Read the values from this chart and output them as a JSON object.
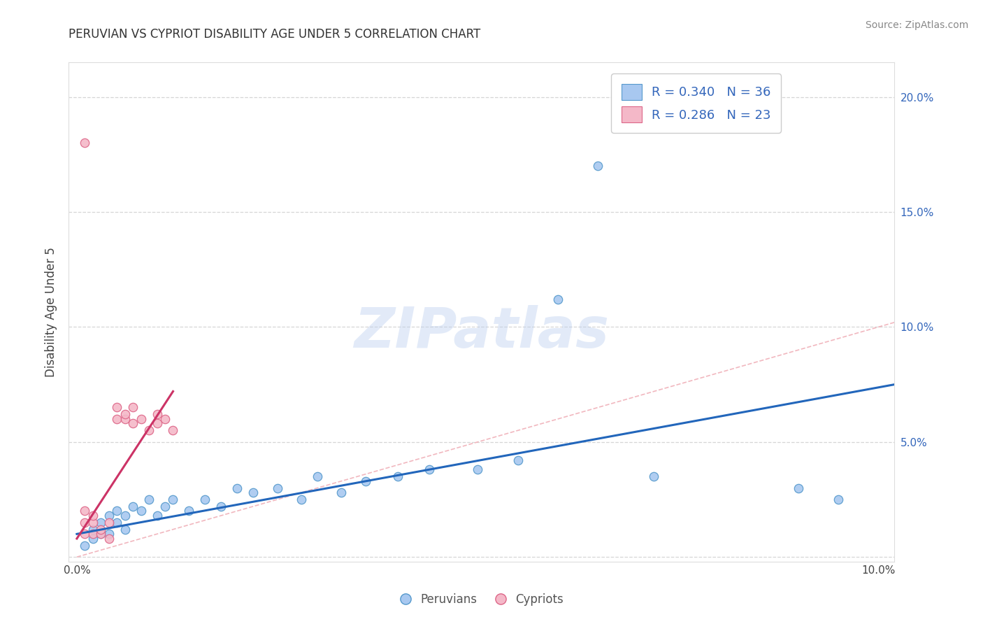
{
  "title": "PERUVIAN VS CYPRIOT DISABILITY AGE UNDER 5 CORRELATION CHART",
  "source_text": "Source: ZipAtlas.com",
  "xlabel": "",
  "ylabel": "Disability Age Under 5",
  "xlim": [
    -0.001,
    0.102
  ],
  "ylim": [
    -0.002,
    0.215
  ],
  "xticks": [
    0.0,
    0.02,
    0.04,
    0.06,
    0.08,
    0.1
  ],
  "yticks": [
    0.0,
    0.05,
    0.1,
    0.15,
    0.2
  ],
  "xticklabels": [
    "0.0%",
    "",
    "",
    "",
    "",
    "10.0%"
  ],
  "yticklabels_right": [
    "",
    "5.0%",
    "10.0%",
    "15.0%",
    "20.0%"
  ],
  "peruvian_color": "#a8c8f0",
  "cypriot_color": "#f4b8c8",
  "peruvian_edge_color": "#5599cc",
  "cypriot_edge_color": "#dd6688",
  "peruvian_trend_color": "#2266bb",
  "cypriot_trend_color": "#cc3366",
  "diag_color": "#f0b0b8",
  "peruvian_R": 0.34,
  "peruvian_N": 36,
  "cypriot_R": 0.286,
  "cypriot_N": 23,
  "watermark": "ZIPatlas",
  "watermark_color": "#b8ccee",
  "background_color": "#ffffff",
  "grid_color": "#cccccc",
  "peru_x": [
    0.001,
    0.002,
    0.002,
    0.003,
    0.003,
    0.004,
    0.004,
    0.005,
    0.005,
    0.006,
    0.006,
    0.007,
    0.008,
    0.009,
    0.01,
    0.011,
    0.012,
    0.014,
    0.016,
    0.018,
    0.02,
    0.022,
    0.025,
    0.028,
    0.03,
    0.033,
    0.036,
    0.04,
    0.044,
    0.05,
    0.055,
    0.06,
    0.065,
    0.072,
    0.09,
    0.095
  ],
  "peru_y": [
    0.005,
    0.008,
    0.012,
    0.01,
    0.015,
    0.018,
    0.01,
    0.02,
    0.015,
    0.018,
    0.012,
    0.022,
    0.02,
    0.025,
    0.018,
    0.022,
    0.025,
    0.02,
    0.025,
    0.022,
    0.03,
    0.028,
    0.03,
    0.025,
    0.035,
    0.028,
    0.033,
    0.035,
    0.038,
    0.038,
    0.042,
    0.112,
    0.17,
    0.035,
    0.03,
    0.025
  ],
  "cyp_x": [
    0.001,
    0.001,
    0.001,
    0.002,
    0.002,
    0.002,
    0.003,
    0.003,
    0.004,
    0.004,
    0.005,
    0.005,
    0.006,
    0.006,
    0.007,
    0.007,
    0.008,
    0.009,
    0.01,
    0.01,
    0.011,
    0.012,
    0.001
  ],
  "cyp_y": [
    0.01,
    0.015,
    0.02,
    0.01,
    0.015,
    0.018,
    0.01,
    0.012,
    0.008,
    0.015,
    0.06,
    0.065,
    0.06,
    0.062,
    0.058,
    0.065,
    0.06,
    0.055,
    0.062,
    0.058,
    0.06,
    0.055,
    0.18
  ],
  "peru_trend_x": [
    0.0,
    0.102
  ],
  "peru_trend_y": [
    0.01,
    0.075
  ],
  "cyp_trend_x": [
    0.0,
    0.012
  ],
  "cyp_trend_y": [
    0.008,
    0.072
  ]
}
